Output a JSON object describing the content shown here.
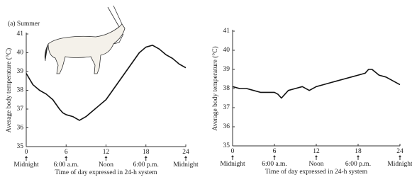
{
  "chart_data": [
    {
      "type": "line",
      "title": "(a) Summer",
      "ylabel": "Average body temperature (°C)",
      "xlabel": "Time of day expressed in 24-h system",
      "x": [
        0,
        1,
        2,
        3,
        4,
        5,
        5.5,
        6,
        7,
        8,
        9,
        10,
        11,
        12,
        13,
        14,
        15,
        16,
        17,
        18,
        19,
        20,
        21,
        22,
        23,
        24
      ],
      "values": [
        38.9,
        38.3,
        38.0,
        37.8,
        37.5,
        37.0,
        36.8,
        36.7,
        36.6,
        36.4,
        36.6,
        36.9,
        37.2,
        37.5,
        38.0,
        38.5,
        39.0,
        39.5,
        40.0,
        40.3,
        40.4,
        40.2,
        39.9,
        39.7,
        39.4,
        39.2
      ],
      "color": "#111",
      "xlim": [
        0,
        24
      ],
      "ylim": [
        35,
        41
      ],
      "xticks": [
        0,
        6,
        12,
        18,
        24
      ],
      "yticks": [
        35,
        36,
        37,
        38,
        39,
        40,
        41
      ],
      "xtick_captions": [
        "Midnight",
        "6:00 a.m.",
        "Noon",
        "6:00 p.m.",
        "Midnight"
      ]
    },
    {
      "type": "line",
      "ylabel": "Average body temperature (°C)",
      "xlabel": "Time of day expressed in 24-h system",
      "x": [
        0,
        1,
        2,
        3,
        4,
        5,
        6,
        6.5,
        7,
        7.5,
        8,
        9,
        10,
        11,
        12,
        13,
        14,
        15,
        16,
        17,
        18,
        19,
        19.5,
        20,
        21,
        22,
        23,
        24
      ],
      "values": [
        38.1,
        38.0,
        38.0,
        37.9,
        37.8,
        37.8,
        37.8,
        37.7,
        37.5,
        37.7,
        37.9,
        38.0,
        38.1,
        37.9,
        38.1,
        38.2,
        38.3,
        38.4,
        38.5,
        38.6,
        38.7,
        38.8,
        39.0,
        39.0,
        38.7,
        38.6,
        38.4,
        38.2
      ],
      "color": "#111",
      "xlim": [
        0,
        24
      ],
      "ylim": [
        35,
        41
      ],
      "xticks": [
        0,
        6,
        12,
        18,
        24
      ],
      "yticks": [
        35,
        36,
        37,
        38,
        39,
        40,
        41
      ],
      "xtick_captions": [
        "Midnight",
        "6:00 a.m.",
        "Noon",
        "6:00 p.m.",
        "Midnight"
      ]
    }
  ]
}
